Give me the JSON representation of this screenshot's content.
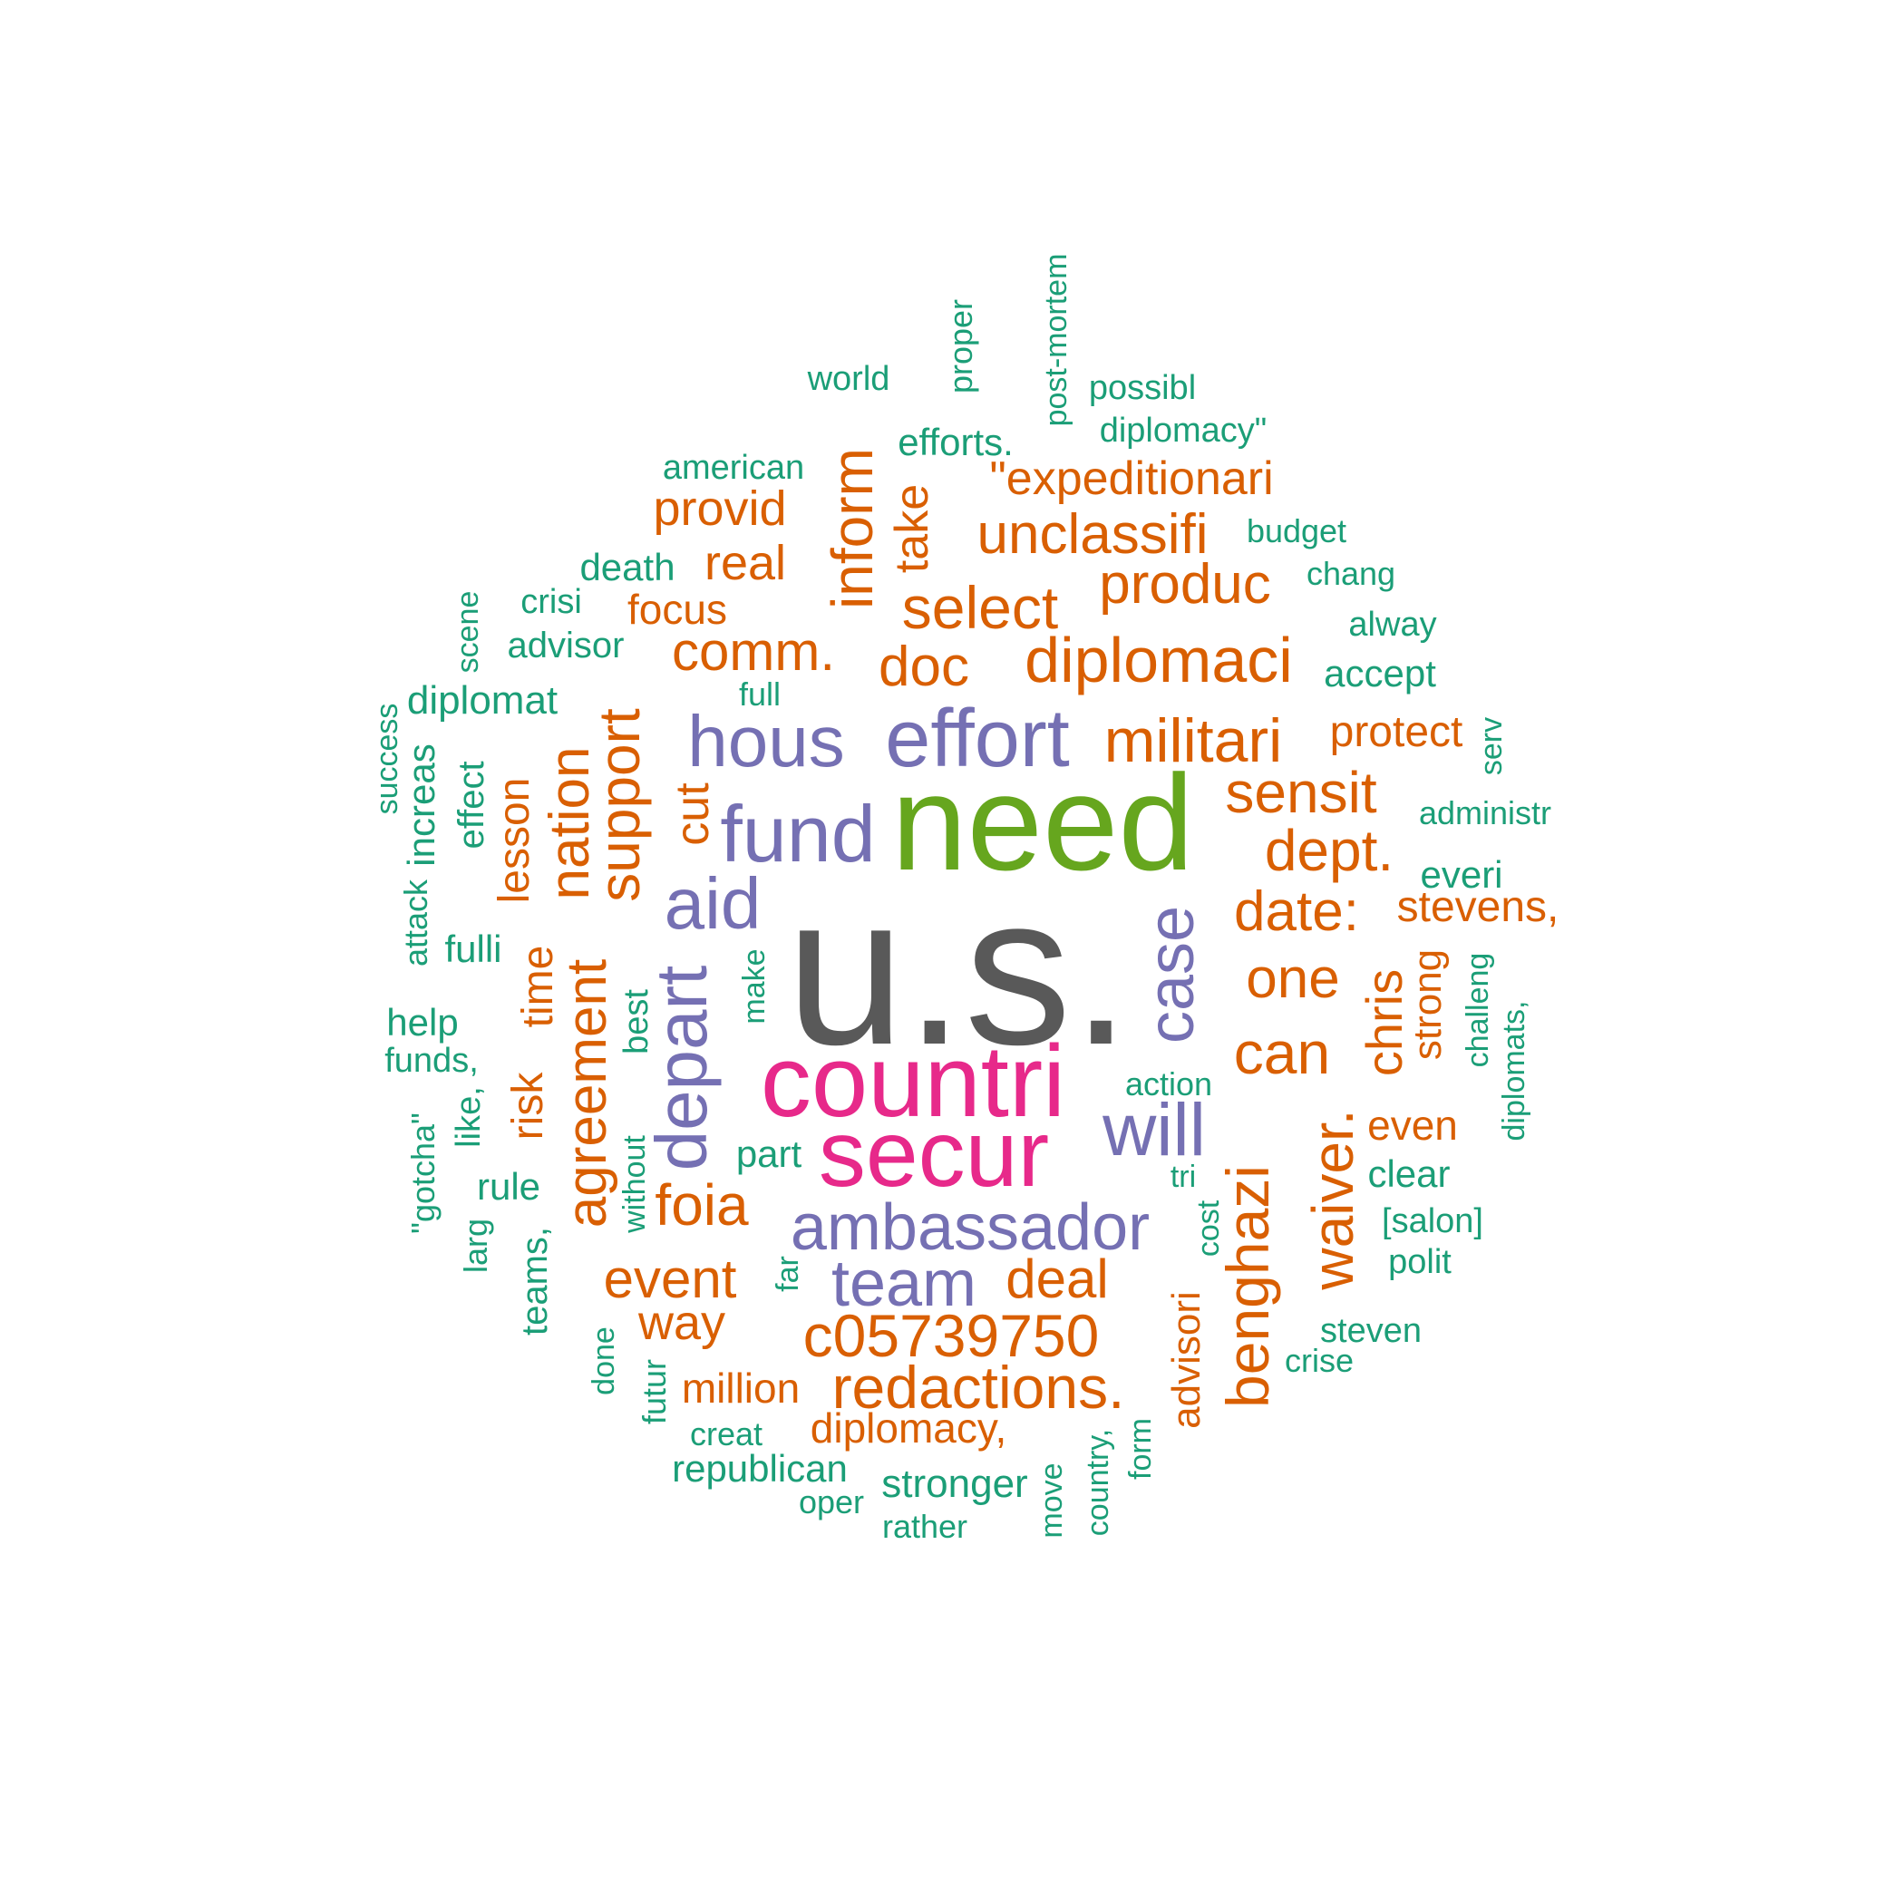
{
  "colors": {
    "orange": "#d95f02",
    "purple": "#7570b3",
    "green": "#1b9e77",
    "pink": "#e7298a",
    "lime": "#66a61e",
    "gray": "#595959"
  },
  "words": [
    {
      "text": "u.s."
    },
    {
      "text": "need"
    },
    {
      "text": "countri"
    },
    {
      "text": "secur"
    },
    {
      "text": "effort"
    },
    {
      "text": "hous"
    },
    {
      "text": "fund"
    },
    {
      "text": "aid"
    },
    {
      "text": "ambassador"
    },
    {
      "text": "team"
    },
    {
      "text": "depart"
    },
    {
      "text": "case"
    },
    {
      "text": "will"
    },
    {
      "text": "diplomaci"
    },
    {
      "text": "militari"
    },
    {
      "text": "select"
    },
    {
      "text": "unclassifi"
    },
    {
      "text": "produc"
    },
    {
      "text": "\"expeditionari"
    },
    {
      "text": "inform"
    },
    {
      "text": "take"
    },
    {
      "text": "provid"
    },
    {
      "text": "real"
    },
    {
      "text": "focus"
    },
    {
      "text": "comm."
    },
    {
      "text": "doc"
    },
    {
      "text": "support"
    },
    {
      "text": "nation"
    },
    {
      "text": "cut"
    },
    {
      "text": "sensit"
    },
    {
      "text": "dept."
    },
    {
      "text": "date:"
    },
    {
      "text": "one"
    },
    {
      "text": "can"
    },
    {
      "text": "chris"
    },
    {
      "text": "waiver."
    },
    {
      "text": "benghazi"
    },
    {
      "text": "agreement"
    },
    {
      "text": "time"
    },
    {
      "text": "risk"
    },
    {
      "text": "lesson"
    },
    {
      "text": "foia"
    },
    {
      "text": "event"
    },
    {
      "text": "way"
    },
    {
      "text": "deal"
    },
    {
      "text": "c05739750"
    },
    {
      "text": "redactions."
    },
    {
      "text": "million"
    },
    {
      "text": "diplomacy,"
    },
    {
      "text": "advisori"
    },
    {
      "text": "protect"
    },
    {
      "text": "stevens,"
    },
    {
      "text": "strong"
    },
    {
      "text": "even"
    },
    {
      "text": "world"
    },
    {
      "text": "proper"
    },
    {
      "text": "post-mortem"
    },
    {
      "text": "possibl"
    },
    {
      "text": "diplomacy\""
    },
    {
      "text": "efforts."
    },
    {
      "text": "american"
    },
    {
      "text": "budget"
    },
    {
      "text": "chang"
    },
    {
      "text": "death"
    },
    {
      "text": "crisi"
    },
    {
      "text": "alway"
    },
    {
      "text": "advisor"
    },
    {
      "text": "scene"
    },
    {
      "text": "accept"
    },
    {
      "text": "full"
    },
    {
      "text": "diplomat"
    },
    {
      "text": "success"
    },
    {
      "text": "increas"
    },
    {
      "text": "effect"
    },
    {
      "text": "serv"
    },
    {
      "text": "administr"
    },
    {
      "text": "everi"
    },
    {
      "text": "attack"
    },
    {
      "text": "fulli"
    },
    {
      "text": "make"
    },
    {
      "text": "best"
    },
    {
      "text": "challeng"
    },
    {
      "text": "diplomats,"
    },
    {
      "text": "help"
    },
    {
      "text": "funds,"
    },
    {
      "text": "like,"
    },
    {
      "text": "\"gotcha\""
    },
    {
      "text": "action"
    },
    {
      "text": "part"
    },
    {
      "text": "rule"
    },
    {
      "text": "without"
    },
    {
      "text": "tri"
    },
    {
      "text": "clear"
    },
    {
      "text": "larg"
    },
    {
      "text": "teams,"
    },
    {
      "text": "far"
    },
    {
      "text": "cost"
    },
    {
      "text": "[salon]"
    },
    {
      "text": "polit"
    },
    {
      "text": "steven"
    },
    {
      "text": "crise"
    },
    {
      "text": "done"
    },
    {
      "text": "futur"
    },
    {
      "text": "creat"
    },
    {
      "text": "republican"
    },
    {
      "text": "stronger"
    },
    {
      "text": "oper"
    },
    {
      "text": "rather"
    },
    {
      "text": "move"
    },
    {
      "text": "country,"
    },
    {
      "text": "form"
    }
  ]
}
